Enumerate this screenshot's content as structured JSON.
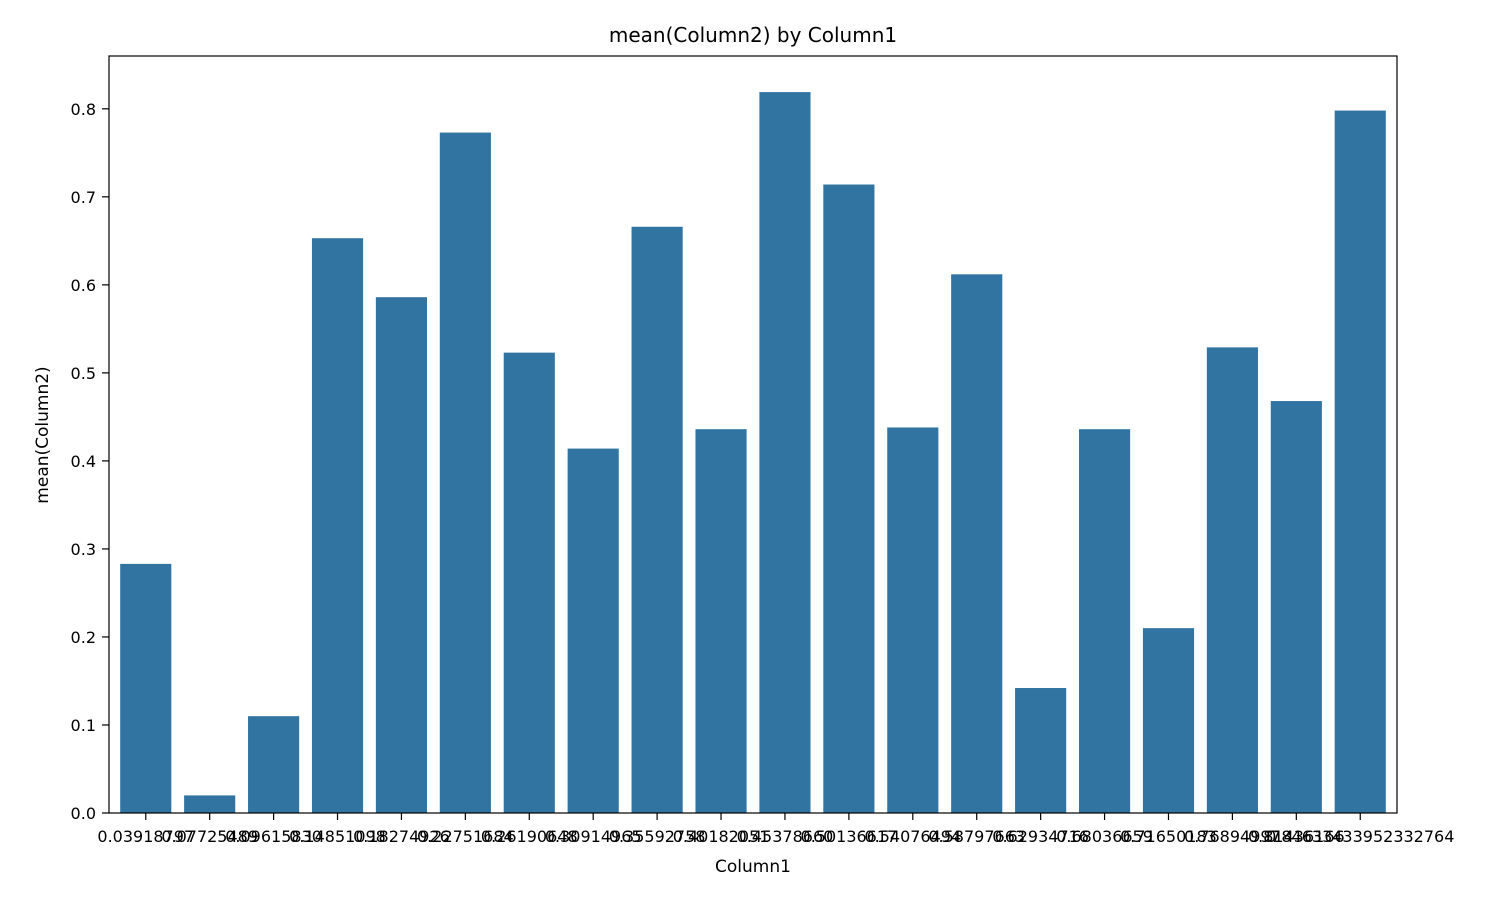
{
  "chart_data": {
    "type": "bar",
    "title": "mean(Column2) by Column1",
    "xlabel": "Column1",
    "ylabel": "mean(Column2)",
    "ylim": [
      0,
      0.86
    ],
    "yticks": [
      "0.0",
      "0.1",
      "0.2",
      "0.3",
      "0.4",
      "0.5",
      "0.6",
      "0.7",
      "0.8"
    ],
    "grid": false,
    "legend": "none",
    "bar_color": "#3274a1",
    "categories": [
      "0.03918797",
      "0.07725489",
      "0.09615830",
      "0.14851098",
      "0.18274926",
      "0.22751684",
      "0.26190648",
      "0.30914965",
      "0.35592758",
      "0.40182051",
      "0.45378660",
      "0.50136617",
      "0.54076494",
      "0.58797663",
      "0.62934716",
      "0.68036659",
      "0.71650183",
      "0.76894997",
      "0.81436166",
      "0.84633433952332764"
    ],
    "values": [
      0.283,
      0.02,
      0.11,
      0.653,
      0.586,
      0.773,
      0.523,
      0.414,
      0.666,
      0.436,
      0.819,
      0.714,
      0.438,
      0.612,
      0.142,
      0.436,
      0.21,
      0.529,
      0.468,
      0.798
    ]
  }
}
